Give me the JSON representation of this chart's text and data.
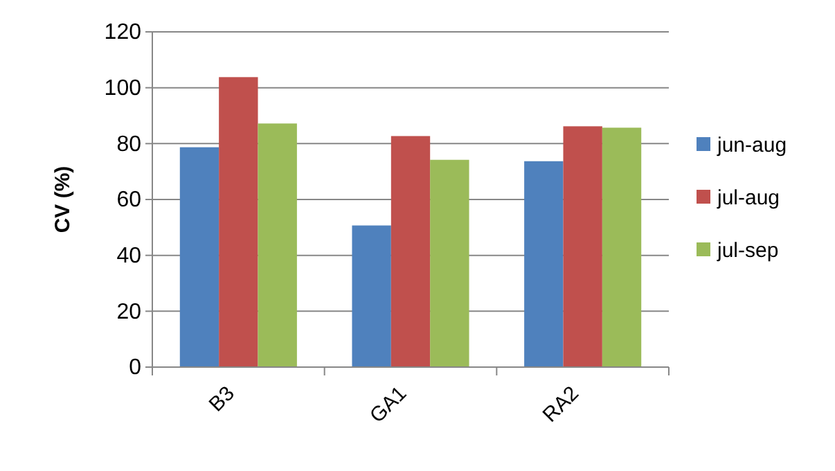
{
  "chart_data": {
    "type": "bar",
    "ylabel": "CV (%)",
    "categories": [
      "B3",
      "GA1",
      "RA2"
    ],
    "series": [
      {
        "name": "jun-aug",
        "color": "#4f81bd",
        "values": [
          78.7,
          50.7,
          73.7
        ]
      },
      {
        "name": "jul-aug",
        "color": "#c0504d",
        "values": [
          103.8,
          82.7,
          86.2
        ]
      },
      {
        "name": "jul-sep",
        "color": "#9bbb59",
        "values": [
          87.2,
          74.2,
          85.7
        ]
      }
    ],
    "ylim": [
      0,
      120
    ],
    "yticks": [
      0,
      20,
      40,
      60,
      80,
      100,
      120
    ],
    "grid": "y",
    "legend": "right"
  }
}
